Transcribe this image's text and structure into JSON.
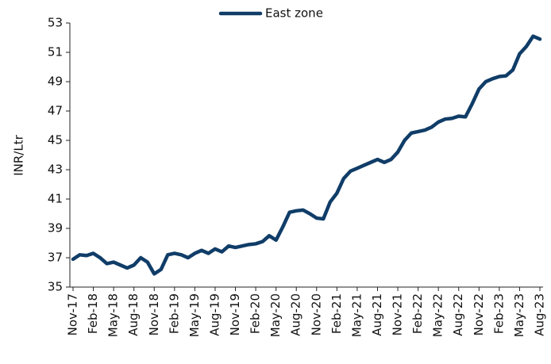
{
  "chart_data": {
    "type": "line",
    "y_label": "INR/Ltr",
    "categories": [
      "Nov-17",
      null,
      null,
      "Feb-18",
      null,
      null,
      "May-18",
      null,
      null,
      "Aug-18",
      null,
      null,
      "Nov-18",
      null,
      null,
      "Feb-19",
      null,
      null,
      "May-19",
      null,
      null,
      "Aug-19",
      null,
      null,
      "Nov-19",
      null,
      null,
      "Feb-20",
      null,
      null,
      "May-20",
      null,
      null,
      "Aug-20",
      null,
      null,
      "Nov-20",
      null,
      null,
      "Feb-21",
      null,
      null,
      "May-21",
      null,
      null,
      "Aug-21",
      null,
      null,
      "Nov-21",
      null,
      null,
      "Feb-22",
      null,
      null,
      "May-22",
      null,
      null,
      "Aug-22",
      null,
      null,
      "Nov-22",
      null,
      null,
      "Feb-23",
      null,
      null,
      "May-23",
      null,
      null,
      "Aug-23"
    ],
    "series": [
      {
        "name": "East zone",
        "color": "#103d68",
        "values": [
          36.9,
          37.2,
          37.15,
          37.3,
          37.0,
          36.6,
          36.7,
          36.5,
          36.3,
          36.5,
          37.0,
          36.7,
          35.9,
          36.2,
          37.2,
          37.3,
          37.2,
          37.0,
          37.3,
          37.5,
          37.3,
          37.6,
          37.4,
          37.8,
          37.7,
          37.8,
          37.9,
          37.95,
          38.1,
          38.5,
          38.2,
          39.1,
          40.1,
          40.2,
          40.25,
          40.0,
          39.7,
          39.65,
          40.8,
          41.4,
          42.4,
          42.9,
          43.1,
          43.3,
          43.5,
          43.7,
          43.5,
          43.7,
          44.2,
          45.0,
          45.5,
          45.6,
          45.7,
          45.9,
          46.25,
          46.45,
          46.5,
          46.65,
          46.6,
          47.5,
          48.5,
          49.0,
          49.2,
          49.35,
          49.4,
          49.8,
          50.9,
          51.4,
          52.1,
          51.9
        ]
      }
    ],
    "ylim": [
      35,
      53
    ],
    "yticks": [
      35,
      37,
      39,
      41,
      43,
      45,
      47,
      49,
      51,
      53
    ],
    "legend": "top"
  }
}
